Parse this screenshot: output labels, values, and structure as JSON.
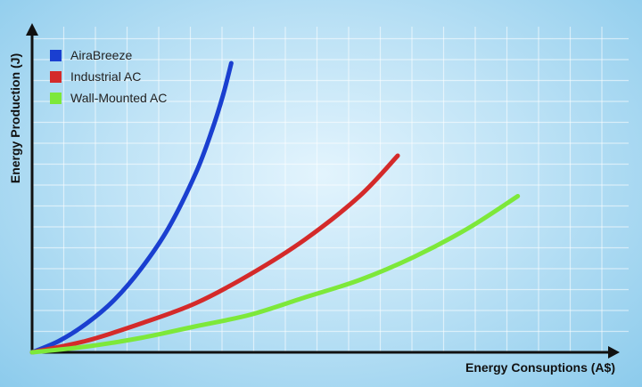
{
  "chart_data": {
    "type": "line",
    "title": "",
    "xlabel": "Energy Consuptions (A$)",
    "ylabel": "Energy Production (J)",
    "xlim": [
      0,
      1
    ],
    "ylim": [
      0,
      1
    ],
    "grid": true,
    "legend_position": "top-left",
    "series": [
      {
        "name": "AiraBreeze",
        "color": "#1a3fd0",
        "x": [
          0,
          0.05,
          0.1,
          0.15,
          0.2,
          0.25,
          0.3,
          0.33,
          0.35,
          0.365
        ],
        "y": [
          0,
          0.04,
          0.1,
          0.18,
          0.29,
          0.43,
          0.62,
          0.77,
          0.89,
          1.0
        ]
      },
      {
        "name": "Industrial AC",
        "color": "#d42a2a",
        "x": [
          0,
          0.1,
          0.2,
          0.3,
          0.4,
          0.5,
          0.6,
          0.67
        ],
        "y": [
          0,
          0.04,
          0.1,
          0.17,
          0.27,
          0.39,
          0.54,
          0.68
        ]
      },
      {
        "name": "Wall-Mounted AC",
        "color": "#7de83a",
        "x": [
          0,
          0.1,
          0.2,
          0.3,
          0.4,
          0.5,
          0.6,
          0.7,
          0.8,
          0.89
        ],
        "y": [
          0,
          0.02,
          0.05,
          0.09,
          0.13,
          0.19,
          0.25,
          0.33,
          0.43,
          0.54
        ]
      }
    ]
  }
}
